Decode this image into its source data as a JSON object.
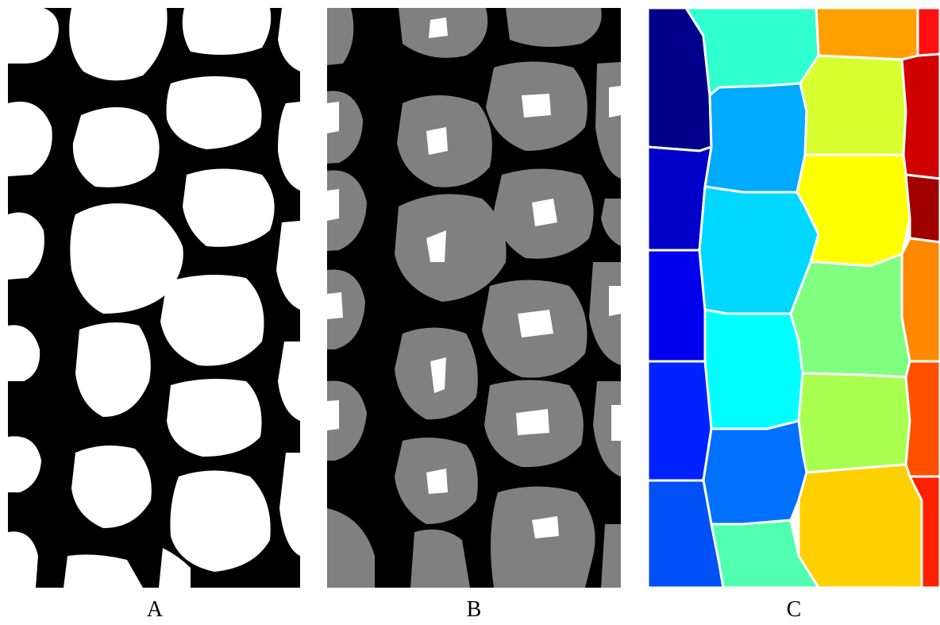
{
  "panels": [
    {
      "id": "A",
      "label": "A"
    },
    {
      "id": "B",
      "label": "B"
    },
    {
      "id": "C",
      "label": "C"
    }
  ],
  "colors": {
    "binary_foreground": "#ffffff",
    "background": "#000000",
    "distance_band": "#808080",
    "segmentation_palette": [
      "#00008b",
      "#0000ee",
      "#0044ff",
      "#0088ff",
      "#00aaff",
      "#00d8ff",
      "#00ffff",
      "#30ffd0",
      "#80ff80",
      "#a8ff50",
      "#d8ff30",
      "#ffff00",
      "#ffd000",
      "#ffa000",
      "#ff7000",
      "#ff4000",
      "#e00000",
      "#a00000"
    ]
  }
}
